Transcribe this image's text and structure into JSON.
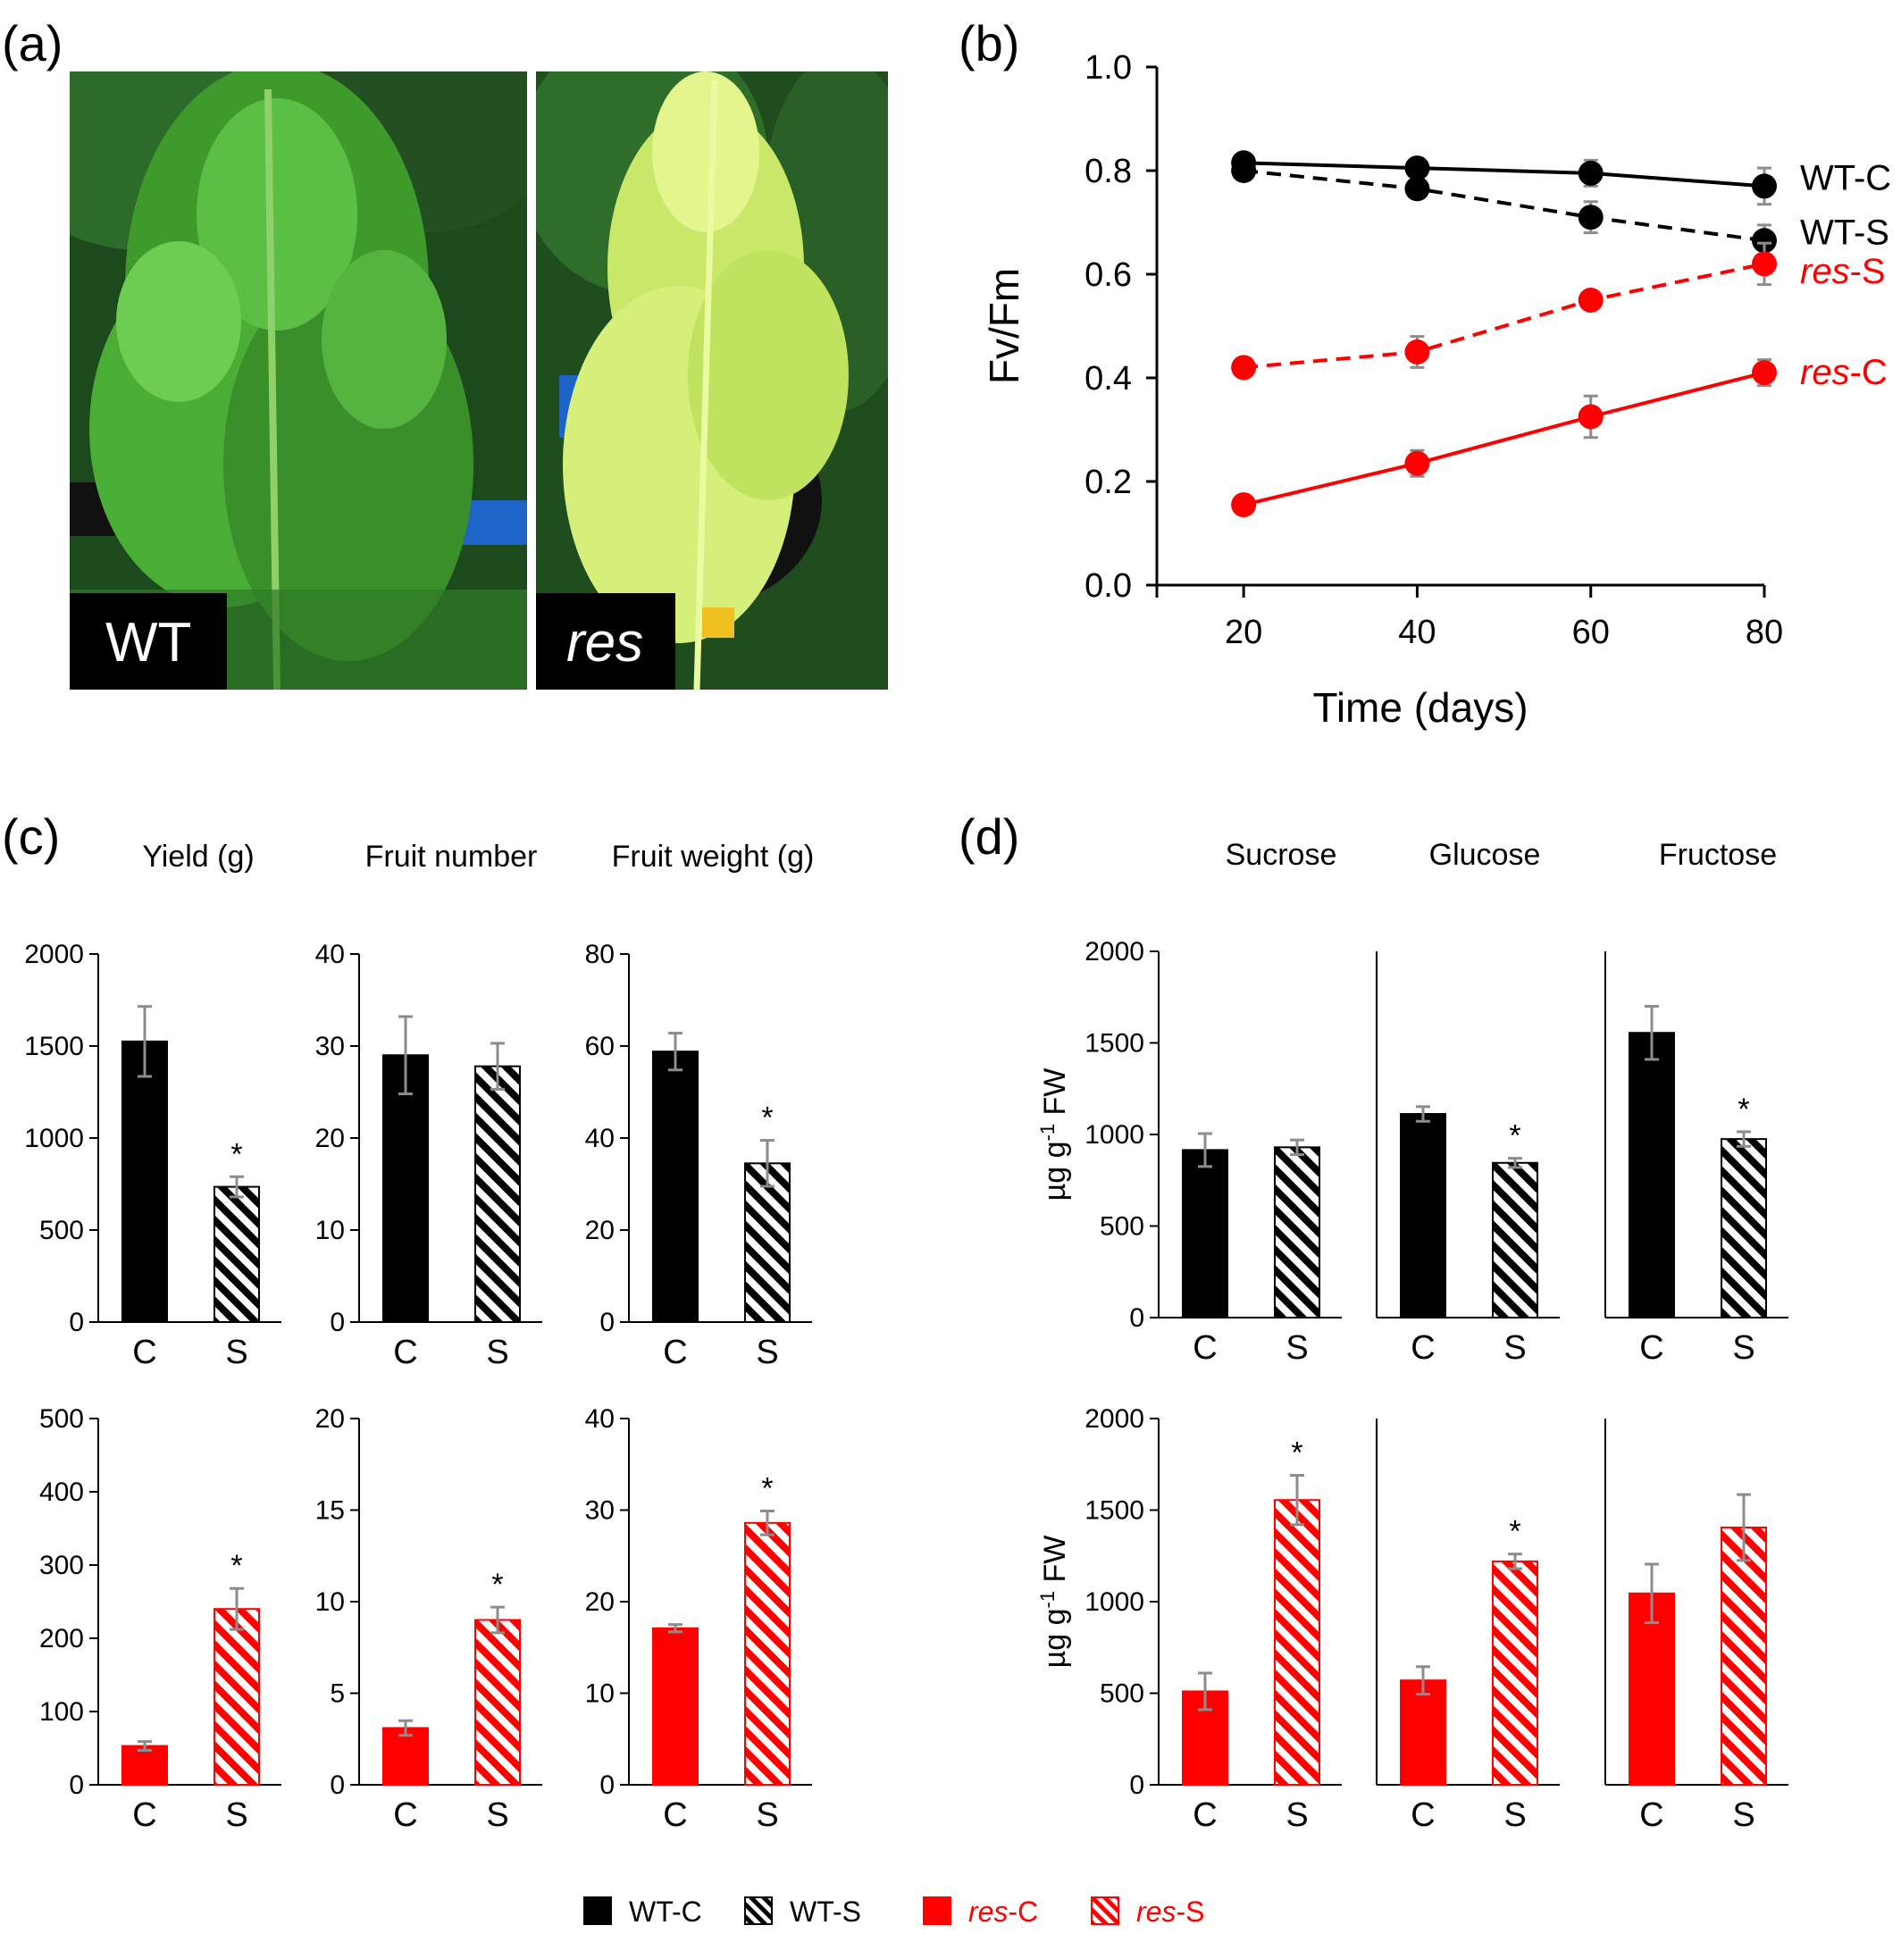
{
  "panel_labels": {
    "a": "(a)",
    "b": "(b)",
    "c": "(c)",
    "d": "(d)"
  },
  "photos": [
    {
      "tag": "WT",
      "italic": false
    },
    {
      "tag": "res",
      "italic": true
    }
  ],
  "colors": {
    "wt": "#000000",
    "res": "#ff0000",
    "error_bar": "#8c8c8c"
  },
  "chart_data": [
    {
      "panel": "b",
      "type": "line",
      "xlabel": "Time (days)",
      "ylabel": "Fv/Fm",
      "x": [
        20,
        40,
        60,
        80
      ],
      "xlim": [
        10,
        80
      ],
      "ylim": [
        0,
        1.0
      ],
      "yticks": [
        "0.0",
        "0.2",
        "0.4",
        "0.6",
        "0.8",
        "1.0"
      ],
      "xticks": [
        "20",
        "40",
        "60",
        "80"
      ],
      "series": [
        {
          "name": "WT-C",
          "label_prefix": "WT",
          "label_suffix": "-C",
          "italic_prefix": false,
          "color": "#000000",
          "dashed": false,
          "values": [
            0.815,
            0.805,
            0.795,
            0.77
          ],
          "errors": [
            0.01,
            0.01,
            0.025,
            0.035
          ]
        },
        {
          "name": "WT-S",
          "label_prefix": "WT",
          "label_suffix": "-S",
          "italic_prefix": false,
          "color": "#000000",
          "dashed": true,
          "values": [
            0.8,
            0.765,
            0.71,
            0.665
          ],
          "errors": [
            0.01,
            0.01,
            0.03,
            0.03
          ]
        },
        {
          "name": "res-S",
          "label_prefix": "res",
          "label_suffix": "-S",
          "italic_prefix": true,
          "color": "#ff0000",
          "dashed": true,
          "values": [
            0.42,
            0.45,
            0.55,
            0.62
          ],
          "errors": [
            0.01,
            0.03,
            0.01,
            0.04
          ]
        },
        {
          "name": "res-C",
          "label_prefix": "res",
          "label_suffix": "-C",
          "italic_prefix": true,
          "color": "#ff0000",
          "dashed": false,
          "values": [
            0.155,
            0.235,
            0.325,
            0.41
          ],
          "errors": [
            0.01,
            0.025,
            0.04,
            0.025
          ]
        }
      ]
    },
    {
      "panel": "c",
      "type": "bar",
      "titles": [
        "Yield (g)",
        "Fruit number",
        "Fruit weight (g)"
      ],
      "categories": [
        "C",
        "S"
      ],
      "rows": [
        {
          "genotype": "WT",
          "subplots": [
            {
              "ylim": [
                0,
                2000
              ],
              "yticks": [
                "0",
                "500",
                "1000",
                "1500",
                "2000"
              ],
              "values": [
                1525,
                735
              ],
              "errors": [
                190,
                55
              ],
              "significant": [
                false,
                true
              ]
            },
            {
              "ylim": [
                0,
                40
              ],
              "yticks": [
                "0",
                "10",
                "20",
                "30",
                "40"
              ],
              "values": [
                29,
                27.8
              ],
              "errors": [
                4.2,
                2.5
              ],
              "significant": [
                false,
                false
              ]
            },
            {
              "ylim": [
                0,
                80
              ],
              "yticks": [
                "0",
                "20",
                "40",
                "60",
                "80"
              ],
              "values": [
                58.8,
                34.5
              ],
              "errors": [
                4.0,
                5.0
              ],
              "significant": [
                false,
                true
              ]
            }
          ]
        },
        {
          "genotype": "res",
          "subplots": [
            {
              "ylim": [
                0,
                500
              ],
              "yticks": [
                "0",
                "100",
                "200",
                "300",
                "400",
                "500"
              ],
              "values": [
                53,
                240
              ],
              "errors": [
                6,
                28
              ],
              "significant": [
                false,
                true
              ]
            },
            {
              "ylim": [
                0,
                20
              ],
              "yticks": [
                "0",
                "5",
                "10",
                "15",
                "20"
              ],
              "values": [
                3.1,
                9.0
              ],
              "errors": [
                0.4,
                0.7
              ],
              "significant": [
                false,
                true
              ]
            },
            {
              "ylim": [
                0,
                40
              ],
              "yticks": [
                "0",
                "10",
                "20",
                "30",
                "40"
              ],
              "values": [
                17.1,
                28.6
              ],
              "errors": [
                0.4,
                1.3
              ],
              "significant": [
                false,
                true
              ]
            }
          ]
        }
      ]
    },
    {
      "panel": "d",
      "type": "bar",
      "titles": [
        "Sucrose",
        "Glucose",
        "Fructose"
      ],
      "ylabel_main": "µg g",
      "ylabel_sup": "-1",
      "ylabel_tail": " FW",
      "categories": [
        "C",
        "S"
      ],
      "ylim": [
        0,
        2000
      ],
      "yticks": [
        "0",
        "500",
        "1000",
        "1500",
        "2000"
      ],
      "rows": [
        {
          "genotype": "WT",
          "subplots": [
            {
              "values": [
                915,
                930
              ],
              "errors": [
                90,
                40
              ],
              "significant": [
                false,
                false
              ]
            },
            {
              "values": [
                1112,
                845
              ],
              "errors": [
                40,
                25
              ],
              "significant": [
                false,
                true
              ]
            },
            {
              "values": [
                1555,
                975
              ],
              "errors": [
                145,
                40
              ],
              "significant": [
                false,
                true
              ]
            }
          ]
        },
        {
          "genotype": "res",
          "subplots": [
            {
              "values": [
                510,
                1555
              ],
              "errors": [
                100,
                135
              ],
              "significant": [
                false,
                true
              ]
            },
            {
              "values": [
                570,
                1220
              ],
              "errors": [
                75,
                40
              ],
              "significant": [
                false,
                true
              ]
            },
            {
              "values": [
                1045,
                1405
              ],
              "errors": [
                160,
                180
              ],
              "significant": [
                false,
                false
              ]
            }
          ]
        }
      ]
    }
  ],
  "legend": [
    {
      "prefix": "WT",
      "suffix": "-C",
      "italic_prefix": false,
      "fill": "solid",
      "color": "#000000"
    },
    {
      "prefix": "WT",
      "suffix": "-S",
      "italic_prefix": false,
      "fill": "hatched",
      "color": "#000000"
    },
    {
      "prefix": "res",
      "suffix": "-C",
      "italic_prefix": true,
      "fill": "solid",
      "color": "#ff0000"
    },
    {
      "prefix": "res",
      "suffix": "-S",
      "italic_prefix": true,
      "fill": "hatched",
      "color": "#ff0000"
    }
  ]
}
